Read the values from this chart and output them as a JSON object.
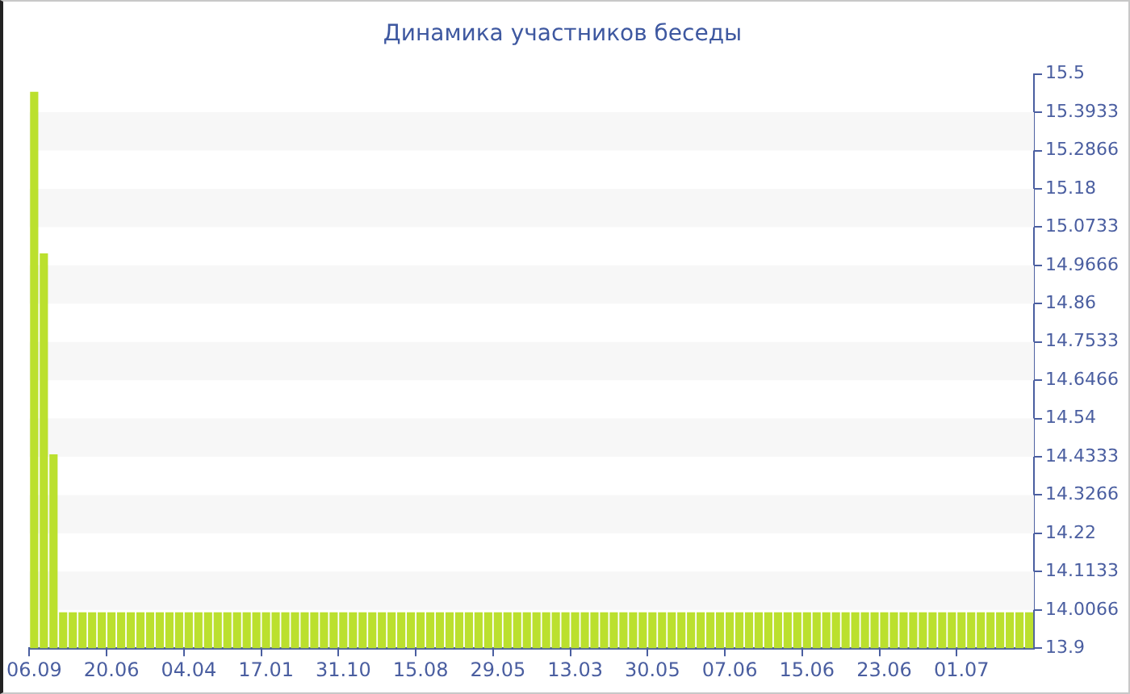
{
  "chart_data": {
    "type": "bar",
    "title": "Динамика участников беседы",
    "categories": [
      "06.09",
      null,
      null,
      null,
      null,
      null,
      null,
      null,
      "20.06",
      null,
      null,
      null,
      null,
      null,
      null,
      null,
      "04.04",
      null,
      null,
      null,
      null,
      null,
      null,
      null,
      "17.01",
      null,
      null,
      null,
      null,
      null,
      null,
      null,
      "31.10",
      null,
      null,
      null,
      null,
      null,
      null,
      null,
      "15.08",
      null,
      null,
      null,
      null,
      null,
      null,
      null,
      "29.05",
      null,
      null,
      null,
      null,
      null,
      null,
      null,
      "13.03",
      null,
      null,
      null,
      null,
      null,
      null,
      null,
      "30.05",
      null,
      null,
      null,
      null,
      null,
      null,
      null,
      "07.06",
      null,
      null,
      null,
      null,
      null,
      null,
      null,
      "15.06",
      null,
      null,
      null,
      null,
      null,
      null,
      null,
      "23.06",
      null,
      null,
      null,
      null,
      null,
      null,
      null,
      "01.07",
      null,
      null,
      null,
      null,
      null,
      null,
      null
    ],
    "values": [
      15.45,
      15.0,
      14.44,
      14,
      14,
      14,
      14,
      14,
      14,
      14,
      14,
      14,
      14,
      14,
      14,
      14,
      14,
      14,
      14,
      14,
      14,
      14,
      14,
      14,
      14,
      14,
      14,
      14,
      14,
      14,
      14,
      14,
      14,
      14,
      14,
      14,
      14,
      14,
      14,
      14,
      14,
      14,
      14,
      14,
      14,
      14,
      14,
      14,
      14,
      14,
      14,
      14,
      14,
      14,
      14,
      14,
      14,
      14,
      14,
      14,
      14,
      14,
      14,
      14,
      14,
      14,
      14,
      14,
      14,
      14,
      14,
      14,
      14,
      14,
      14,
      14,
      14,
      14,
      14,
      14,
      14,
      14,
      14,
      14,
      14,
      14,
      14,
      14,
      14,
      14,
      14,
      14,
      14,
      14,
      14,
      14,
      14,
      14,
      14,
      14,
      14,
      14,
      14,
      14
    ],
    "color": "#bbe02e",
    "ylim": [
      13.9,
      15.5
    ],
    "yticks": [
      13.9,
      14.0066,
      14.1133,
      14.22,
      14.3266,
      14.4333,
      14.54,
      14.6466,
      14.7533,
      14.86,
      14.9666,
      15.0733,
      15.18,
      15.2866,
      15.3933,
      15.5
    ]
  }
}
